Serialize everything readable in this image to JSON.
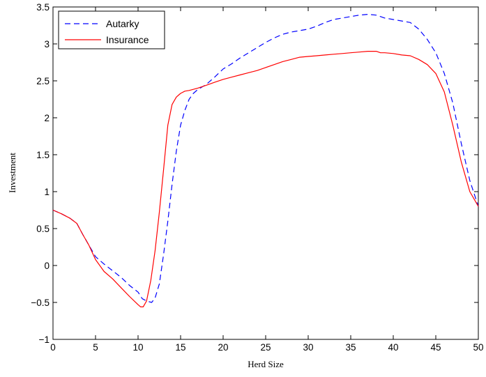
{
  "chart_data": {
    "type": "line",
    "title": "",
    "xlabel": "Herd Size",
    "ylabel": "Investment",
    "xlim": [
      0,
      50
    ],
    "ylim": [
      -1,
      3.5
    ],
    "xticks": [
      0,
      5,
      10,
      15,
      20,
      25,
      30,
      35,
      40,
      45,
      50
    ],
    "yticks": [
      -1,
      -0.5,
      0,
      0.5,
      1,
      1.5,
      2,
      2.5,
      3,
      3.5
    ],
    "ytick_labels": [
      "−1",
      "−0.5",
      "0",
      "0.5",
      "1",
      "1.5",
      "2",
      "2.5",
      "3",
      "3.5"
    ],
    "grid": false,
    "legend": "top-left",
    "series": [
      {
        "name": "Autarky",
        "color": "#0000ff",
        "style": "dashed",
        "x": [
          0,
          1,
          2,
          2.8,
          3.5,
          4.2,
          5,
          6,
          7,
          8,
          9,
          10,
          10.5,
          11,
          11.6,
          12,
          12.5,
          13,
          13.5,
          14,
          14.5,
          15,
          15.5,
          16,
          16.5,
          17,
          18,
          19,
          20,
          21,
          22,
          23,
          24,
          25,
          26,
          27,
          28,
          29,
          30,
          31,
          32,
          33,
          34,
          35,
          36,
          37,
          38,
          39,
          40,
          41,
          42,
          43,
          44,
          45,
          46,
          47,
          48,
          49,
          50
        ],
        "y": [
          0.75,
          0.7,
          0.64,
          0.57,
          0.42,
          0.28,
          0.12,
          0.02,
          -0.07,
          -0.16,
          -0.27,
          -0.36,
          -0.45,
          -0.48,
          -0.5,
          -0.44,
          -0.25,
          0.15,
          0.6,
          1.1,
          1.55,
          1.9,
          2.1,
          2.25,
          2.33,
          2.38,
          2.45,
          2.55,
          2.66,
          2.73,
          2.81,
          2.88,
          2.95,
          3.02,
          3.08,
          3.13,
          3.16,
          3.18,
          3.2,
          3.24,
          3.29,
          3.33,
          3.35,
          3.37,
          3.39,
          3.4,
          3.39,
          3.35,
          3.33,
          3.31,
          3.29,
          3.2,
          3.06,
          2.88,
          2.6,
          2.2,
          1.65,
          1.15,
          0.8
        ]
      },
      {
        "name": "Insurance",
        "color": "#ff0000",
        "style": "solid",
        "x": [
          0,
          1,
          2,
          2.8,
          3.5,
          4.2,
          5,
          6,
          7,
          8,
          9,
          10,
          10.3,
          10.6,
          11,
          11.5,
          12,
          12.5,
          13,
          13.5,
          14,
          14.5,
          15,
          15.5,
          16,
          17,
          18,
          19,
          20,
          21,
          22,
          23,
          24,
          25,
          26,
          27,
          28,
          29,
          30,
          31,
          32,
          33,
          34,
          35,
          36,
          37,
          38,
          38.5,
          39,
          40,
          41,
          42,
          43,
          44,
          45,
          46,
          47,
          48,
          49,
          50
        ],
        "y": [
          0.75,
          0.7,
          0.64,
          0.57,
          0.42,
          0.28,
          0.08,
          -0.08,
          -0.18,
          -0.3,
          -0.42,
          -0.53,
          -0.56,
          -0.56,
          -0.48,
          -0.2,
          0.2,
          0.72,
          1.3,
          1.9,
          2.18,
          2.28,
          2.33,
          2.36,
          2.37,
          2.4,
          2.44,
          2.48,
          2.52,
          2.55,
          2.58,
          2.61,
          2.64,
          2.68,
          2.72,
          2.76,
          2.79,
          2.82,
          2.83,
          2.84,
          2.85,
          2.86,
          2.87,
          2.88,
          2.89,
          2.9,
          2.9,
          2.88,
          2.88,
          2.87,
          2.85,
          2.84,
          2.79,
          2.72,
          2.6,
          2.35,
          1.9,
          1.4,
          1.0,
          0.8
        ]
      }
    ]
  }
}
